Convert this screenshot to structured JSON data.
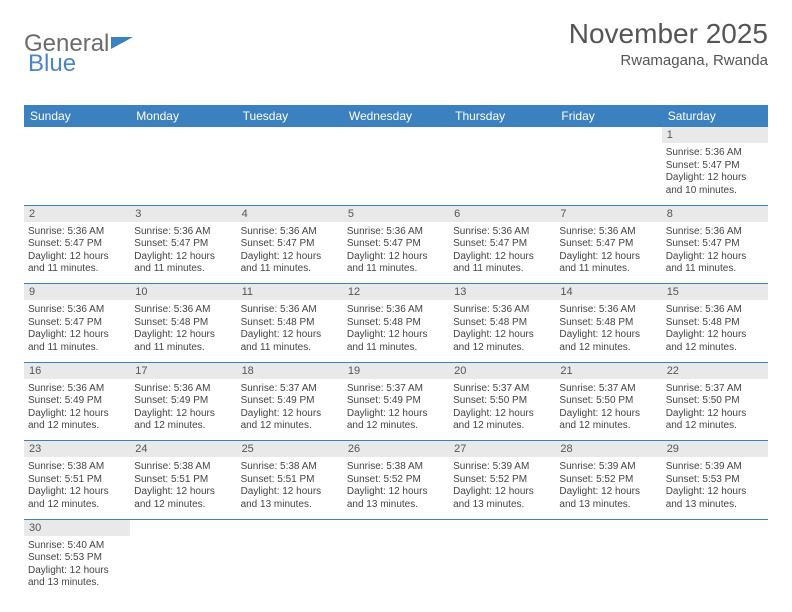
{
  "logo": {
    "part1": "General",
    "part2": "Blue"
  },
  "title": {
    "month": "November 2025",
    "location": "Rwamagana, Rwanda"
  },
  "colors": {
    "header_bg": "#3c81bf",
    "header_fg": "#ffffff",
    "daynum_bg": "#e9e9e9",
    "rule": "#3c81bf",
    "text": "#444444",
    "logo_gray": "#6b6b6b",
    "logo_blue": "#4a86c5"
  },
  "weekdays": [
    "Sunday",
    "Monday",
    "Tuesday",
    "Wednesday",
    "Thursday",
    "Friday",
    "Saturday"
  ],
  "weeks": [
    [
      null,
      null,
      null,
      null,
      null,
      null,
      {
        "n": "1",
        "sr": "Sunrise: 5:36 AM",
        "ss": "Sunset: 5:47 PM",
        "dl": "Daylight: 12 hours and 10 minutes."
      }
    ],
    [
      {
        "n": "2",
        "sr": "Sunrise: 5:36 AM",
        "ss": "Sunset: 5:47 PM",
        "dl": "Daylight: 12 hours and 11 minutes."
      },
      {
        "n": "3",
        "sr": "Sunrise: 5:36 AM",
        "ss": "Sunset: 5:47 PM",
        "dl": "Daylight: 12 hours and 11 minutes."
      },
      {
        "n": "4",
        "sr": "Sunrise: 5:36 AM",
        "ss": "Sunset: 5:47 PM",
        "dl": "Daylight: 12 hours and 11 minutes."
      },
      {
        "n": "5",
        "sr": "Sunrise: 5:36 AM",
        "ss": "Sunset: 5:47 PM",
        "dl": "Daylight: 12 hours and 11 minutes."
      },
      {
        "n": "6",
        "sr": "Sunrise: 5:36 AM",
        "ss": "Sunset: 5:47 PM",
        "dl": "Daylight: 12 hours and 11 minutes."
      },
      {
        "n": "7",
        "sr": "Sunrise: 5:36 AM",
        "ss": "Sunset: 5:47 PM",
        "dl": "Daylight: 12 hours and 11 minutes."
      },
      {
        "n": "8",
        "sr": "Sunrise: 5:36 AM",
        "ss": "Sunset: 5:47 PM",
        "dl": "Daylight: 12 hours and 11 minutes."
      }
    ],
    [
      {
        "n": "9",
        "sr": "Sunrise: 5:36 AM",
        "ss": "Sunset: 5:47 PM",
        "dl": "Daylight: 12 hours and 11 minutes."
      },
      {
        "n": "10",
        "sr": "Sunrise: 5:36 AM",
        "ss": "Sunset: 5:48 PM",
        "dl": "Daylight: 12 hours and 11 minutes."
      },
      {
        "n": "11",
        "sr": "Sunrise: 5:36 AM",
        "ss": "Sunset: 5:48 PM",
        "dl": "Daylight: 12 hours and 11 minutes."
      },
      {
        "n": "12",
        "sr": "Sunrise: 5:36 AM",
        "ss": "Sunset: 5:48 PM",
        "dl": "Daylight: 12 hours and 11 minutes."
      },
      {
        "n": "13",
        "sr": "Sunrise: 5:36 AM",
        "ss": "Sunset: 5:48 PM",
        "dl": "Daylight: 12 hours and 12 minutes."
      },
      {
        "n": "14",
        "sr": "Sunrise: 5:36 AM",
        "ss": "Sunset: 5:48 PM",
        "dl": "Daylight: 12 hours and 12 minutes."
      },
      {
        "n": "15",
        "sr": "Sunrise: 5:36 AM",
        "ss": "Sunset: 5:48 PM",
        "dl": "Daylight: 12 hours and 12 minutes."
      }
    ],
    [
      {
        "n": "16",
        "sr": "Sunrise: 5:36 AM",
        "ss": "Sunset: 5:49 PM",
        "dl": "Daylight: 12 hours and 12 minutes."
      },
      {
        "n": "17",
        "sr": "Sunrise: 5:36 AM",
        "ss": "Sunset: 5:49 PM",
        "dl": "Daylight: 12 hours and 12 minutes."
      },
      {
        "n": "18",
        "sr": "Sunrise: 5:37 AM",
        "ss": "Sunset: 5:49 PM",
        "dl": "Daylight: 12 hours and 12 minutes."
      },
      {
        "n": "19",
        "sr": "Sunrise: 5:37 AM",
        "ss": "Sunset: 5:49 PM",
        "dl": "Daylight: 12 hours and 12 minutes."
      },
      {
        "n": "20",
        "sr": "Sunrise: 5:37 AM",
        "ss": "Sunset: 5:50 PM",
        "dl": "Daylight: 12 hours and 12 minutes."
      },
      {
        "n": "21",
        "sr": "Sunrise: 5:37 AM",
        "ss": "Sunset: 5:50 PM",
        "dl": "Daylight: 12 hours and 12 minutes."
      },
      {
        "n": "22",
        "sr": "Sunrise: 5:37 AM",
        "ss": "Sunset: 5:50 PM",
        "dl": "Daylight: 12 hours and 12 minutes."
      }
    ],
    [
      {
        "n": "23",
        "sr": "Sunrise: 5:38 AM",
        "ss": "Sunset: 5:51 PM",
        "dl": "Daylight: 12 hours and 12 minutes."
      },
      {
        "n": "24",
        "sr": "Sunrise: 5:38 AM",
        "ss": "Sunset: 5:51 PM",
        "dl": "Daylight: 12 hours and 12 minutes."
      },
      {
        "n": "25",
        "sr": "Sunrise: 5:38 AM",
        "ss": "Sunset: 5:51 PM",
        "dl": "Daylight: 12 hours and 13 minutes."
      },
      {
        "n": "26",
        "sr": "Sunrise: 5:38 AM",
        "ss": "Sunset: 5:52 PM",
        "dl": "Daylight: 12 hours and 13 minutes."
      },
      {
        "n": "27",
        "sr": "Sunrise: 5:39 AM",
        "ss": "Sunset: 5:52 PM",
        "dl": "Daylight: 12 hours and 13 minutes."
      },
      {
        "n": "28",
        "sr": "Sunrise: 5:39 AM",
        "ss": "Sunset: 5:52 PM",
        "dl": "Daylight: 12 hours and 13 minutes."
      },
      {
        "n": "29",
        "sr": "Sunrise: 5:39 AM",
        "ss": "Sunset: 5:53 PM",
        "dl": "Daylight: 12 hours and 13 minutes."
      }
    ],
    [
      {
        "n": "30",
        "sr": "Sunrise: 5:40 AM",
        "ss": "Sunset: 5:53 PM",
        "dl": "Daylight: 12 hours and 13 minutes."
      },
      null,
      null,
      null,
      null,
      null,
      null
    ]
  ]
}
